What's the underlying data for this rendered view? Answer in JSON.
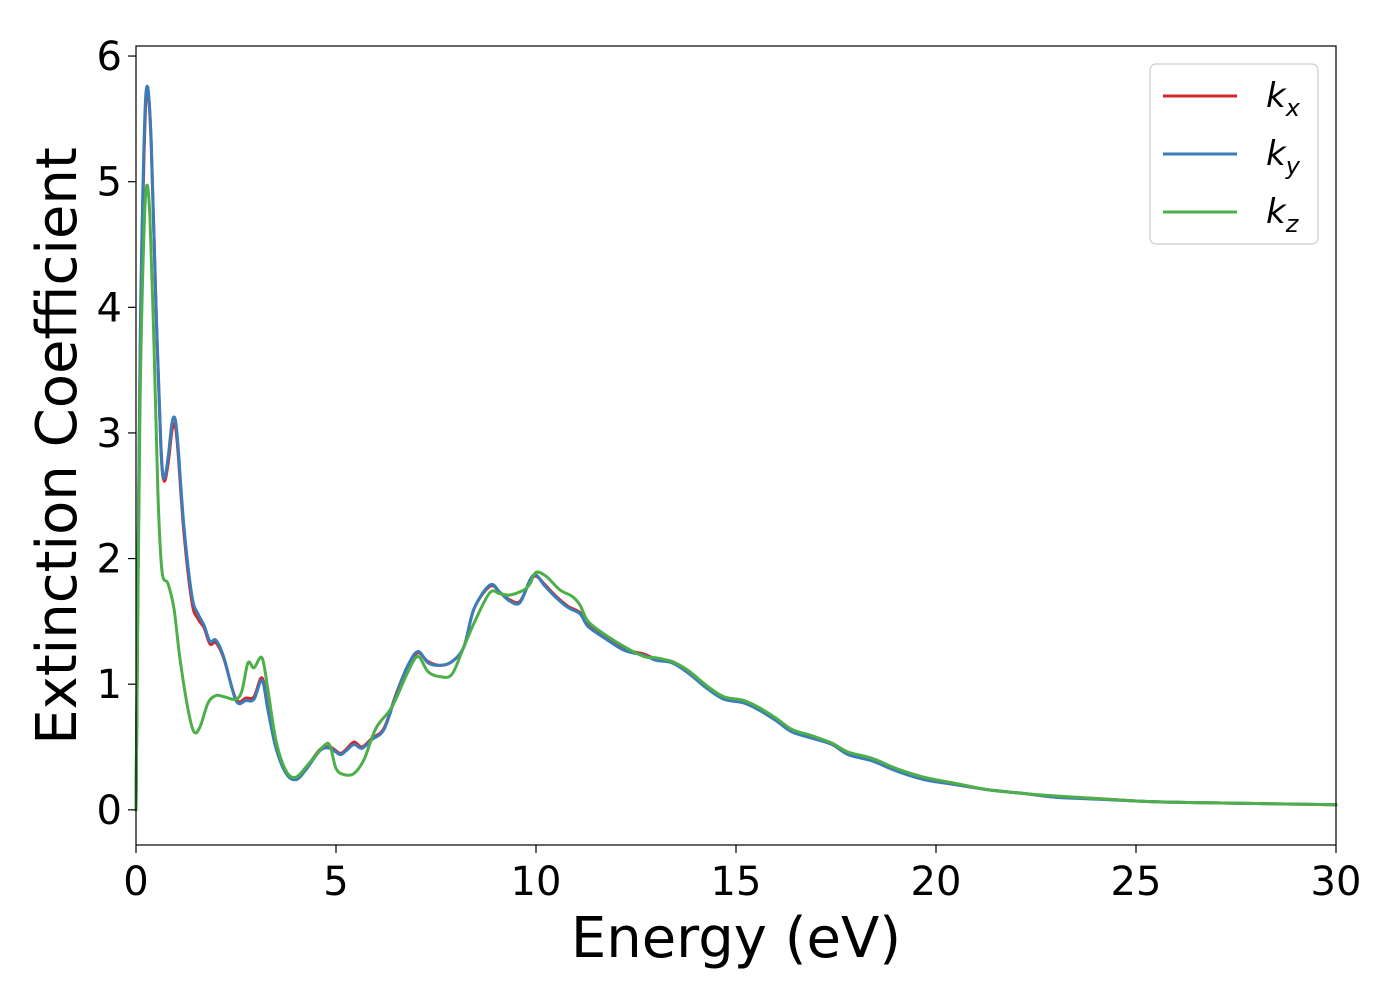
{
  "chart_data": {
    "type": "line",
    "title": "",
    "xlabel": "Energy (eV)",
    "ylabel": "Extinction Coefficient",
    "xlim": [
      0,
      30
    ],
    "ylim": [
      -0.28,
      6.08
    ],
    "xticks": [
      0,
      5,
      10,
      15,
      20,
      25,
      30
    ],
    "yticks": [
      0,
      1,
      2,
      3,
      4,
      5,
      6
    ],
    "grid": false,
    "legend_position": "top-right",
    "series": [
      {
        "name": "k",
        "subscript": "x",
        "color": "#d62728",
        "points": [
          [
            0,
            0
          ],
          [
            0.1,
            3.5
          ],
          [
            0.2,
            5.2
          ],
          [
            0.28,
            5.74
          ],
          [
            0.38,
            5.3
          ],
          [
            0.5,
            4.0
          ],
          [
            0.62,
            2.9
          ],
          [
            0.7,
            2.62
          ],
          [
            0.8,
            2.75
          ],
          [
            0.9,
            3.02
          ],
          [
            0.98,
            3.06
          ],
          [
            1.05,
            2.85
          ],
          [
            1.2,
            2.2
          ],
          [
            1.4,
            1.65
          ],
          [
            1.55,
            1.52
          ],
          [
            1.7,
            1.45
          ],
          [
            1.85,
            1.32
          ],
          [
            2.0,
            1.33
          ],
          [
            2.2,
            1.2
          ],
          [
            2.5,
            0.88
          ],
          [
            2.75,
            0.89
          ],
          [
            2.95,
            0.9
          ],
          [
            3.15,
            1.05
          ],
          [
            3.3,
            0.8
          ],
          [
            3.5,
            0.5
          ],
          [
            3.75,
            0.3
          ],
          [
            4.0,
            0.25
          ],
          [
            4.25,
            0.33
          ],
          [
            4.6,
            0.48
          ],
          [
            4.85,
            0.5
          ],
          [
            5.1,
            0.45
          ],
          [
            5.25,
            0.48
          ],
          [
            5.45,
            0.54
          ],
          [
            5.65,
            0.5
          ],
          [
            5.9,
            0.57
          ],
          [
            6.2,
            0.65
          ],
          [
            6.5,
            0.92
          ],
          [
            6.8,
            1.15
          ],
          [
            7.05,
            1.25
          ],
          [
            7.3,
            1.18
          ],
          [
            7.6,
            1.15
          ],
          [
            7.9,
            1.18
          ],
          [
            8.2,
            1.3
          ],
          [
            8.45,
            1.6
          ],
          [
            8.85,
            1.78
          ],
          [
            9.1,
            1.73
          ],
          [
            9.35,
            1.67
          ],
          [
            9.6,
            1.66
          ],
          [
            9.85,
            1.82
          ],
          [
            10.0,
            1.86
          ],
          [
            10.2,
            1.8
          ],
          [
            10.5,
            1.7
          ],
          [
            10.8,
            1.62
          ],
          [
            11.1,
            1.57
          ],
          [
            11.3,
            1.47
          ],
          [
            11.7,
            1.38
          ],
          [
            12.2,
            1.28
          ],
          [
            12.7,
            1.24
          ],
          [
            13.0,
            1.2
          ],
          [
            13.4,
            1.18
          ],
          [
            13.8,
            1.1
          ],
          [
            14.3,
            0.97
          ],
          [
            14.7,
            0.89
          ],
          [
            15.2,
            0.86
          ],
          [
            15.6,
            0.8
          ],
          [
            16.0,
            0.72
          ],
          [
            16.4,
            0.63
          ],
          [
            16.9,
            0.58
          ],
          [
            17.4,
            0.53
          ],
          [
            17.8,
            0.45
          ],
          [
            18.4,
            0.4
          ],
          [
            19.0,
            0.32
          ],
          [
            19.7,
            0.25
          ],
          [
            20.5,
            0.2
          ],
          [
            21.3,
            0.16
          ],
          [
            22.2,
            0.13
          ],
          [
            23.0,
            0.1
          ],
          [
            24.0,
            0.09
          ],
          [
            25.0,
            0.07
          ],
          [
            26.0,
            0.06
          ],
          [
            27.0,
            0.055
          ],
          [
            28.0,
            0.05
          ],
          [
            29.0,
            0.045
          ],
          [
            30.0,
            0.04
          ]
        ]
      },
      {
        "name": "k",
        "subscript": "y",
        "color": "#3a7db9",
        "points": [
          [
            0,
            0
          ],
          [
            0.1,
            3.6
          ],
          [
            0.2,
            5.3
          ],
          [
            0.28,
            5.76
          ],
          [
            0.38,
            5.32
          ],
          [
            0.5,
            4.02
          ],
          [
            0.62,
            2.92
          ],
          [
            0.7,
            2.64
          ],
          [
            0.8,
            2.8
          ],
          [
            0.9,
            3.08
          ],
          [
            0.98,
            3.11
          ],
          [
            1.05,
            2.9
          ],
          [
            1.2,
            2.25
          ],
          [
            1.4,
            1.7
          ],
          [
            1.55,
            1.56
          ],
          [
            1.7,
            1.47
          ],
          [
            1.85,
            1.34
          ],
          [
            2.0,
            1.35
          ],
          [
            2.2,
            1.21
          ],
          [
            2.5,
            0.87
          ],
          [
            2.75,
            0.87
          ],
          [
            2.95,
            0.88
          ],
          [
            3.15,
            1.03
          ],
          [
            3.3,
            0.79
          ],
          [
            3.5,
            0.49
          ],
          [
            3.75,
            0.29
          ],
          [
            4.0,
            0.24
          ],
          [
            4.25,
            0.32
          ],
          [
            4.6,
            0.47
          ],
          [
            4.85,
            0.49
          ],
          [
            5.1,
            0.44
          ],
          [
            5.25,
            0.47
          ],
          [
            5.45,
            0.52
          ],
          [
            5.65,
            0.49
          ],
          [
            5.9,
            0.56
          ],
          [
            6.2,
            0.64
          ],
          [
            6.5,
            0.91
          ],
          [
            6.8,
            1.15
          ],
          [
            7.05,
            1.26
          ],
          [
            7.3,
            1.17
          ],
          [
            7.6,
            1.15
          ],
          [
            7.9,
            1.18
          ],
          [
            8.2,
            1.3
          ],
          [
            8.45,
            1.6
          ],
          [
            8.85,
            1.79
          ],
          [
            9.1,
            1.73
          ],
          [
            9.35,
            1.66
          ],
          [
            9.6,
            1.65
          ],
          [
            9.85,
            1.83
          ],
          [
            10.0,
            1.87
          ],
          [
            10.2,
            1.79
          ],
          [
            10.5,
            1.69
          ],
          [
            10.8,
            1.61
          ],
          [
            11.1,
            1.56
          ],
          [
            11.3,
            1.46
          ],
          [
            11.7,
            1.37
          ],
          [
            12.2,
            1.27
          ],
          [
            12.7,
            1.23
          ],
          [
            13.0,
            1.19
          ],
          [
            13.4,
            1.17
          ],
          [
            13.8,
            1.09
          ],
          [
            14.3,
            0.96
          ],
          [
            14.7,
            0.88
          ],
          [
            15.2,
            0.85
          ],
          [
            15.6,
            0.79
          ],
          [
            16.0,
            0.71
          ],
          [
            16.4,
            0.62
          ],
          [
            16.9,
            0.57
          ],
          [
            17.4,
            0.52
          ],
          [
            17.8,
            0.44
          ],
          [
            18.4,
            0.39
          ],
          [
            19.0,
            0.31
          ],
          [
            19.7,
            0.24
          ],
          [
            20.5,
            0.2
          ],
          [
            21.3,
            0.16
          ],
          [
            22.2,
            0.13
          ],
          [
            23.0,
            0.1
          ],
          [
            24.0,
            0.085
          ],
          [
            25.0,
            0.07
          ],
          [
            26.0,
            0.06
          ],
          [
            27.0,
            0.055
          ],
          [
            28.0,
            0.05
          ],
          [
            29.0,
            0.045
          ],
          [
            30.0,
            0.04
          ]
        ]
      },
      {
        "name": "k",
        "subscript": "z",
        "color": "#4daf4a",
        "points": [
          [
            0,
            0
          ],
          [
            0.1,
            3.2
          ],
          [
            0.2,
            4.6
          ],
          [
            0.27,
            4.97
          ],
          [
            0.35,
            4.7
          ],
          [
            0.45,
            3.7
          ],
          [
            0.55,
            2.5
          ],
          [
            0.65,
            1.9
          ],
          [
            0.8,
            1.8
          ],
          [
            0.95,
            1.6
          ],
          [
            1.1,
            1.2
          ],
          [
            1.3,
            0.8
          ],
          [
            1.45,
            0.62
          ],
          [
            1.6,
            0.66
          ],
          [
            1.8,
            0.85
          ],
          [
            2.0,
            0.91
          ],
          [
            2.2,
            0.9
          ],
          [
            2.5,
            0.88
          ],
          [
            2.65,
            0.95
          ],
          [
            2.8,
            1.17
          ],
          [
            2.95,
            1.13
          ],
          [
            3.15,
            1.21
          ],
          [
            3.3,
            0.95
          ],
          [
            3.5,
            0.55
          ],
          [
            3.75,
            0.31
          ],
          [
            4.0,
            0.26
          ],
          [
            4.3,
            0.36
          ],
          [
            4.7,
            0.51
          ],
          [
            4.85,
            0.51
          ],
          [
            5.0,
            0.33
          ],
          [
            5.2,
            0.28
          ],
          [
            5.45,
            0.29
          ],
          [
            5.7,
            0.4
          ],
          [
            6.0,
            0.65
          ],
          [
            6.4,
            0.82
          ],
          [
            6.8,
            1.1
          ],
          [
            7.05,
            1.22
          ],
          [
            7.3,
            1.1
          ],
          [
            7.6,
            1.06
          ],
          [
            7.9,
            1.08
          ],
          [
            8.2,
            1.3
          ],
          [
            8.5,
            1.52
          ],
          [
            8.85,
            1.73
          ],
          [
            9.1,
            1.72
          ],
          [
            9.35,
            1.71
          ],
          [
            9.7,
            1.75
          ],
          [
            9.85,
            1.8
          ],
          [
            10.0,
            1.89
          ],
          [
            10.25,
            1.86
          ],
          [
            10.6,
            1.75
          ],
          [
            10.9,
            1.7
          ],
          [
            11.1,
            1.63
          ],
          [
            11.3,
            1.5
          ],
          [
            11.7,
            1.4
          ],
          [
            12.2,
            1.3
          ],
          [
            12.7,
            1.22
          ],
          [
            13.0,
            1.21
          ],
          [
            13.4,
            1.18
          ],
          [
            13.8,
            1.11
          ],
          [
            14.3,
            0.98
          ],
          [
            14.7,
            0.9
          ],
          [
            15.2,
            0.87
          ],
          [
            15.6,
            0.81
          ],
          [
            16.0,
            0.73
          ],
          [
            16.4,
            0.64
          ],
          [
            16.9,
            0.59
          ],
          [
            17.4,
            0.53
          ],
          [
            17.8,
            0.46
          ],
          [
            18.4,
            0.41
          ],
          [
            19.0,
            0.33
          ],
          [
            19.7,
            0.26
          ],
          [
            20.5,
            0.21
          ],
          [
            21.3,
            0.16
          ],
          [
            22.2,
            0.13
          ],
          [
            23.0,
            0.11
          ],
          [
            24.0,
            0.09
          ],
          [
            25.0,
            0.07
          ],
          [
            26.0,
            0.06
          ],
          [
            27.0,
            0.055
          ],
          [
            28.0,
            0.05
          ],
          [
            29.0,
            0.045
          ],
          [
            30.0,
            0.04
          ]
        ]
      }
    ]
  }
}
